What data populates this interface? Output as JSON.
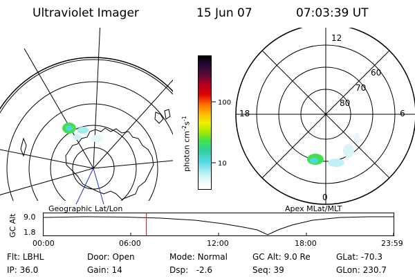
{
  "header": {
    "instrument": "Ultraviolet Imager",
    "date": "15 Jun 07",
    "time": "07:03:39 UT"
  },
  "geo_panel": {
    "label": "Geographic Lat/Lon"
  },
  "apex_panel": {
    "label": "Apex  MLat/MLT",
    "mlt_labels": {
      "top": "12",
      "left": "18",
      "right": "6",
      "bottom": "0"
    },
    "lat_labels": [
      "60",
      "70",
      "80"
    ]
  },
  "colorbar": {
    "unit_label": "photon cm-2s-1",
    "tick_labels": [
      "100",
      "10"
    ],
    "colors": [
      "#000000",
      "#2a0a3a",
      "#5a0a3a",
      "#b00020",
      "#e00000",
      "#ff6a00",
      "#ffb400",
      "#f0f000",
      "#a8e800",
      "#40e050",
      "#30d0a0",
      "#50d8e0",
      "#a0ecf0",
      "#e8f8fa",
      "#ffffff"
    ]
  },
  "altitude_plot": {
    "ylabel": "GC Alt",
    "y_ticks": [
      "9.0",
      "1.8"
    ],
    "x_ticks": [
      "00:00",
      "06:00",
      "12:00",
      "18:00",
      "23:59"
    ],
    "current_time_marker": "07:03"
  },
  "info": {
    "flt_label": "Flt:",
    "flt_value": "LBHL",
    "ip_label": "IP:",
    "ip_value": "36.0",
    "door_label": "Door:",
    "door_value": "Open",
    "gain_label": "Gain:",
    "gain_value": "14",
    "mode_label": "Mode:",
    "mode_value": "Normal",
    "dsp_label": "Dsp:",
    "dsp_value": "-2.6",
    "gcalt_label": "GC Alt:",
    "gcalt_value": "9.0 Re",
    "seq_label": "Seq:",
    "seq_value": "39",
    "glat_label": "GLat:",
    "glat_value": "-70.3",
    "glon_label": "GLon:",
    "glon_value": "230.7"
  }
}
